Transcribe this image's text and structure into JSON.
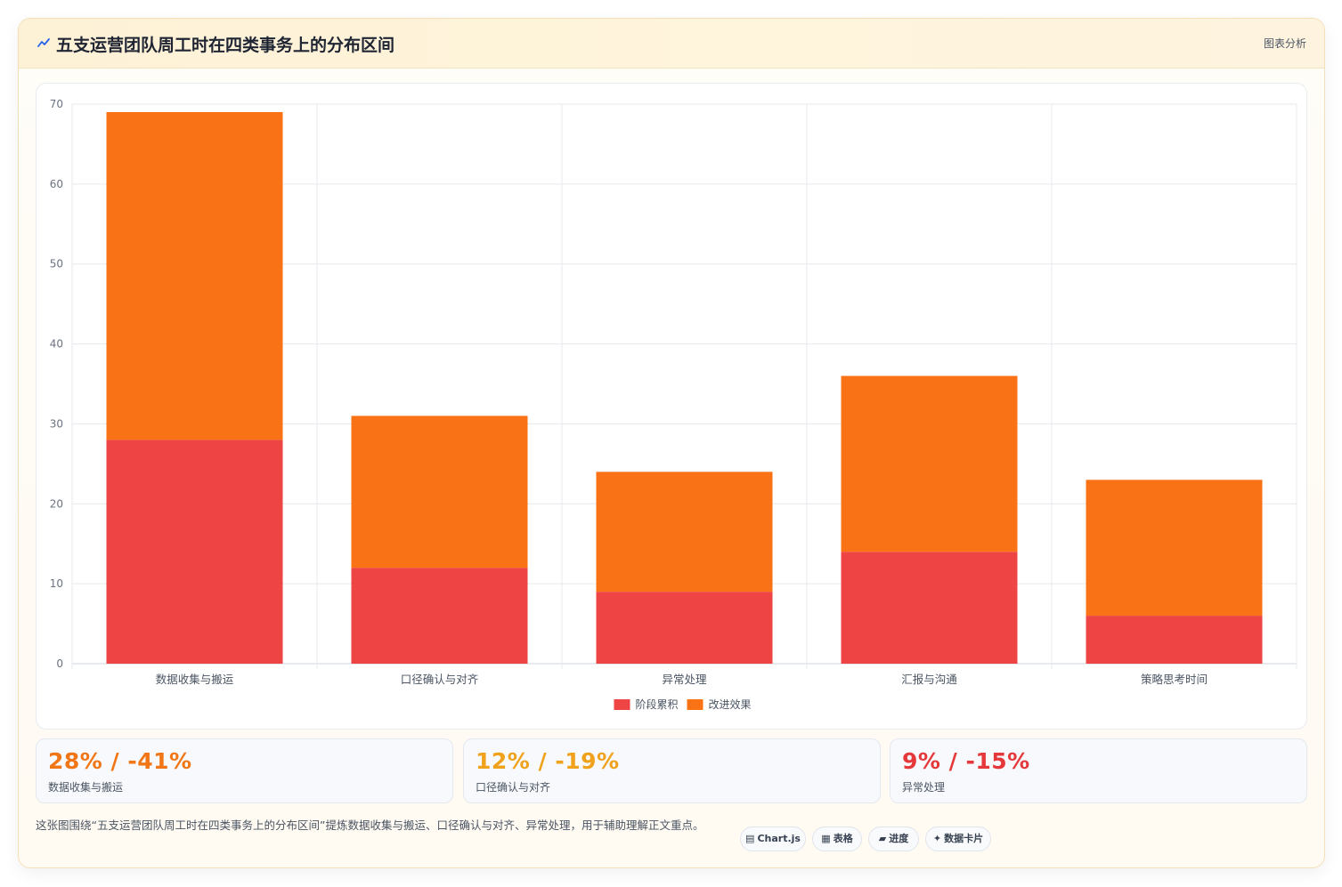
{
  "header": {
    "icon": "sparkline-icon",
    "title": "五支运营团队周工时在四类事务上的分布区间",
    "tag": "图表分析"
  },
  "colors": {
    "series_red": "#ef4444",
    "series_orange": "#f97316",
    "stat_orange": "#f07616",
    "stat_amber": "#f0a21c",
    "stat_red": "#e5383b"
  },
  "chart_data": {
    "type": "bar",
    "stacked": true,
    "categories": [
      "数据收集与搬运",
      "口径确认与对齐",
      "异常处理",
      "汇报与沟通",
      "策略思考时间"
    ],
    "series": [
      {
        "name": "阶段累积",
        "color": "#ef4444",
        "values": [
          28,
          12,
          9,
          14,
          6
        ]
      },
      {
        "name": "改进效果",
        "color": "#f97316",
        "values": [
          41,
          19,
          15,
          22,
          17
        ]
      }
    ],
    "ylim": [
      0,
      70
    ],
    "yticks": [
      0,
      10,
      20,
      30,
      40,
      50,
      60,
      70
    ],
    "grid": true,
    "legend": "bottom"
  },
  "stats": [
    {
      "value": "28% / -41%",
      "label": "数据收集与搬运"
    },
    {
      "value": "12% / -19%",
      "label": "口径确认与对齐"
    },
    {
      "value": "9% / -15%",
      "label": "异常处理"
    }
  ],
  "description": "这张图围绕“五支运营团队周工时在四类事务上的分布区间”提炼数据收集与搬运、口径确认与对齐、异常处理，用于辅助理解正文重点。",
  "chips": [
    {
      "icon": "chart-icon",
      "glyph": "▤",
      "label": "Chart.js"
    },
    {
      "icon": "table-icon",
      "glyph": "▦",
      "label": "表格"
    },
    {
      "icon": "progress-icon",
      "glyph": "▰",
      "label": "进度"
    },
    {
      "icon": "sparkle-icon",
      "glyph": "✦",
      "label": "数据卡片"
    }
  ]
}
